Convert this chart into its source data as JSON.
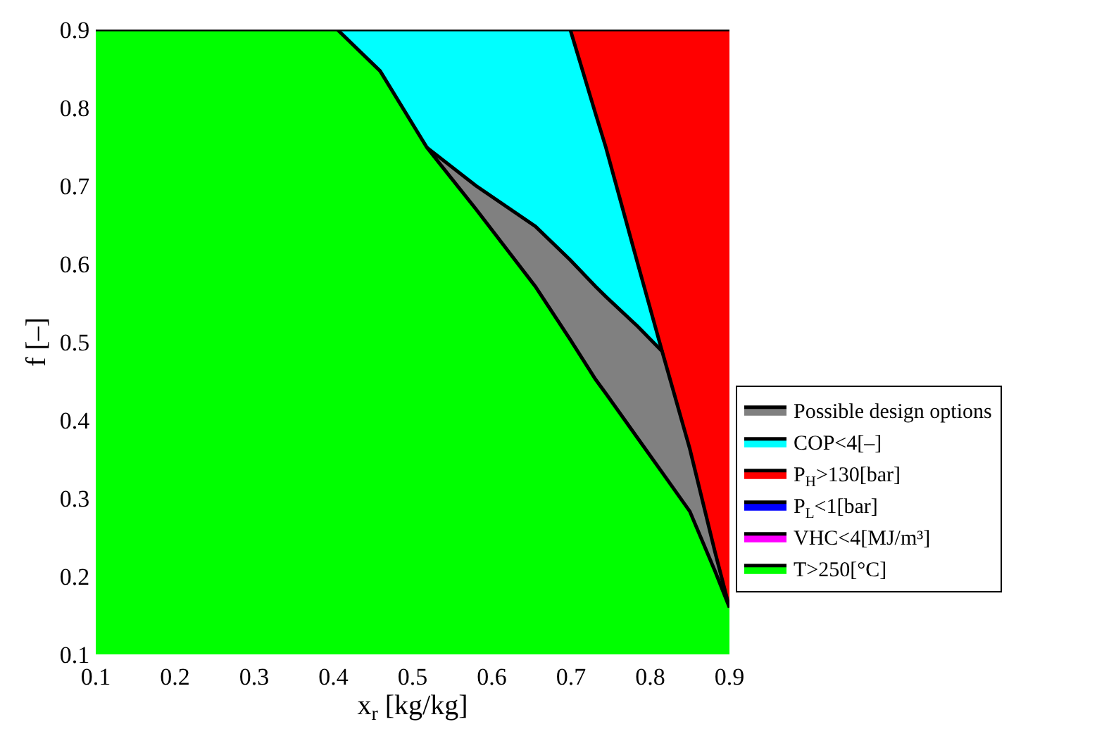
{
  "chart_data": {
    "type": "area",
    "xlabel": "x$_{r}$ [kg/kg]",
    "ylabel": "f [–]",
    "series": [
      {
        "name": "Possible design options",
        "color": "#808080",
        "x": [
          0.518,
          0.58,
          0.655,
          0.699,
          0.731,
          0.744,
          0.784,
          0.815,
          0.85,
          0.882,
          0.9
        ],
        "values": [
          0.749,
          0.7,
          0.648,
          0.605,
          0.571,
          0.558,
          0.52,
          0.488,
          0.363,
          0.23,
          0.16
        ]
      },
      {
        "name": "COP<4[–]",
        "color": "#00ffff",
        "x": [
          0.405,
          0.459,
          0.518,
          0.58,
          0.655,
          0.699,
          0.731,
          0.744,
          0.784,
          0.815
        ],
        "values": [
          0.9,
          0.9,
          0.9,
          0.9,
          0.9,
          0.9,
          0.792,
          0.749,
          0.601,
          0.488
        ]
      },
      {
        "name": "P$_{H}$>130[bar]",
        "color": "#ff0000",
        "x": [
          0.699,
          0.731,
          0.744,
          0.784,
          0.815,
          0.9
        ],
        "values": [
          0.9,
          0.9,
          0.9,
          0.9,
          0.9,
          0.9
        ]
      },
      {
        "name": "P$_{L}$<1[bar]",
        "color": "#0000ff"
      },
      {
        "name": "VHC<4[MJ/m³]",
        "color": "#ff00ff"
      },
      {
        "name": "T>250[°C]",
        "color": "#00ff00",
        "x": [
          0.1,
          0.405,
          0.459,
          0.518,
          0.58,
          0.655,
          0.699,
          0.731,
          0.744,
          0.784,
          0.815,
          0.85,
          0.882,
          0.9
        ],
        "values": [
          0.9,
          0.9,
          0.847,
          0.749,
          0.67,
          0.571,
          0.503,
          0.452,
          0.434,
          0.377,
          0.333,
          0.283,
          0.206,
          0.16
        ]
      }
    ],
    "xlim": [
      0.1,
      0.9
    ],
    "ylim": [
      0.1,
      0.9
    ],
    "xticks": [
      0.1,
      0.2,
      0.3,
      0.4,
      0.5,
      0.6,
      0.7,
      0.8,
      0.9
    ],
    "yticks": [
      0.1,
      0.2,
      0.3,
      0.4,
      0.5,
      0.6,
      0.7,
      0.8,
      0.9
    ],
    "legend": "right"
  }
}
